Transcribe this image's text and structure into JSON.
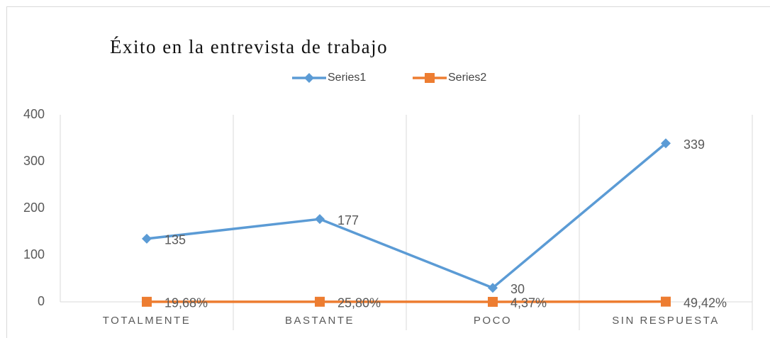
{
  "chart_data": {
    "type": "line",
    "title": "Éxito en la entrevista de trabajo",
    "categories": [
      "TOTALMENTE",
      "BASTANTE",
      "POCO",
      "SIN RESPUESTA"
    ],
    "series": [
      {
        "name": "Series1",
        "color": "#5b9bd5",
        "marker": "diamond",
        "values": [
          135,
          177,
          30,
          339
        ]
      },
      {
        "name": "Series2",
        "color": "#ed7d31",
        "marker": "square",
        "values": [
          0.1968,
          0.258,
          0.0437,
          0.4942
        ],
        "value_labels": [
          "19,68%",
          "25,80%",
          "4,37%",
          "49,42%"
        ]
      }
    ],
    "ylim": [
      0,
      400
    ],
    "yticks": [
      0,
      100,
      200,
      300,
      400
    ],
    "grid": "vertical",
    "legend": "top"
  }
}
